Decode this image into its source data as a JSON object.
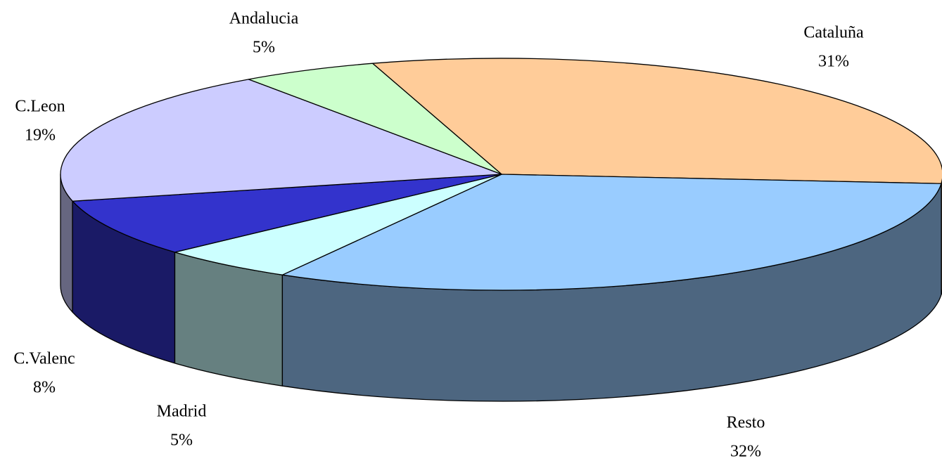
{
  "chart_data": {
    "type": "pie",
    "three_d": true,
    "categories": [
      "Cataluña",
      "Resto",
      "Madrid",
      "C.Valenc",
      "C.Leon",
      "Andalucia"
    ],
    "values": [
      31,
      32,
      5,
      8,
      19,
      5
    ],
    "value_labels": [
      "31%",
      "32%",
      "5%",
      "8%",
      "19%",
      "5%"
    ],
    "colors": [
      "#FFCC99",
      "#99CCFF",
      "#CCFFFF",
      "#3333CC",
      "#CCCCFF",
      "#CCFFCC"
    ]
  }
}
